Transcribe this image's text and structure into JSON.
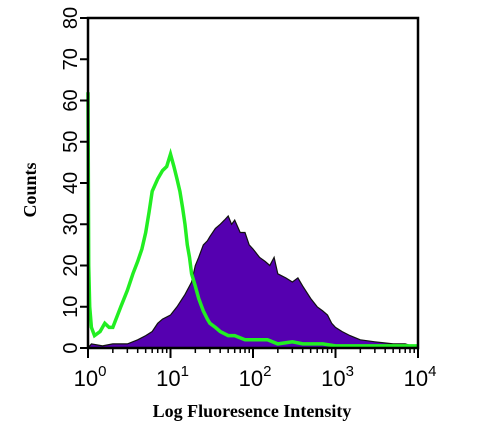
{
  "chart_data": {
    "type": "area",
    "xlabel": "Log Fluoresence Intensity",
    "ylabel": "Counts",
    "x_scale": "log",
    "xlim": [
      1,
      10000
    ],
    "ylim": [
      0,
      80
    ],
    "y_ticks": [
      "0",
      "10",
      "20",
      "30",
      "40",
      "50",
      "60",
      "70",
      "80"
    ],
    "x_ticks": [
      {
        "base": "10",
        "exp": "0",
        "value": 1
      },
      {
        "base": "10",
        "exp": "1",
        "value": 10
      },
      {
        "base": "10",
        "exp": "2",
        "value": 100
      },
      {
        "base": "10",
        "exp": "3",
        "value": 1000
      },
      {
        "base": "10",
        "exp": "4",
        "value": 10000
      }
    ],
    "grid": false,
    "legend": "none",
    "series": [
      {
        "style": "filled",
        "color": "#5500b0",
        "points": [
          [
            1.0,
            0
          ],
          [
            1.1,
            1
          ],
          [
            1.5,
            0.5
          ],
          [
            2,
            1
          ],
          [
            3,
            1
          ],
          [
            4,
            2
          ],
          [
            5,
            3
          ],
          [
            6,
            4
          ],
          [
            7,
            6
          ],
          [
            8,
            7
          ],
          [
            10,
            8
          ],
          [
            12,
            10
          ],
          [
            15,
            13
          ],
          [
            18,
            16
          ],
          [
            20,
            20
          ],
          [
            22,
            22
          ],
          [
            25,
            25
          ],
          [
            28,
            26
          ],
          [
            30,
            27
          ],
          [
            35,
            29
          ],
          [
            40,
            30
          ],
          [
            45,
            31
          ],
          [
            50,
            32
          ],
          [
            55,
            30
          ],
          [
            60,
            31
          ],
          [
            70,
            28
          ],
          [
            80,
            28
          ],
          [
            90,
            25
          ],
          [
            100,
            24
          ],
          [
            120,
            22
          ],
          [
            140,
            21
          ],
          [
            160,
            20
          ],
          [
            180,
            22
          ],
          [
            200,
            18
          ],
          [
            250,
            17
          ],
          [
            300,
            16
          ],
          [
            350,
            17
          ],
          [
            400,
            15
          ],
          [
            500,
            12
          ],
          [
            600,
            10
          ],
          [
            700,
            9
          ],
          [
            800,
            8
          ],
          [
            900,
            6
          ],
          [
            1000,
            5
          ],
          [
            1200,
            4
          ],
          [
            1500,
            3
          ],
          [
            2000,
            2
          ],
          [
            3000,
            1.5
          ],
          [
            5000,
            1
          ],
          [
            7000,
            1
          ],
          [
            10000,
            0
          ]
        ]
      },
      {
        "style": "line",
        "color": "#22ee22",
        "points": [
          [
            1.0,
            62
          ],
          [
            1.02,
            20
          ],
          [
            1.05,
            10
          ],
          [
            1.1,
            5
          ],
          [
            1.2,
            3
          ],
          [
            1.4,
            4
          ],
          [
            1.6,
            6
          ],
          [
            1.8,
            5
          ],
          [
            2,
            5
          ],
          [
            2.5,
            10
          ],
          [
            3,
            14
          ],
          [
            3.5,
            18
          ],
          [
            4,
            21
          ],
          [
            4.5,
            24
          ],
          [
            5,
            28
          ],
          [
            5.5,
            33
          ],
          [
            6,
            38
          ],
          [
            7,
            41
          ],
          [
            8,
            43
          ],
          [
            9,
            44
          ],
          [
            10,
            47
          ],
          [
            11,
            44
          ],
          [
            12,
            41
          ],
          [
            13,
            38
          ],
          [
            14,
            34
          ],
          [
            15,
            30
          ],
          [
            16,
            25
          ],
          [
            17,
            22
          ],
          [
            18,
            18
          ],
          [
            20,
            15
          ],
          [
            22,
            12
          ],
          [
            25,
            9
          ],
          [
            28,
            7
          ],
          [
            30,
            6
          ],
          [
            35,
            5
          ],
          [
            40,
            4
          ],
          [
            50,
            3
          ],
          [
            60,
            3
          ],
          [
            80,
            2
          ],
          [
            100,
            2
          ],
          [
            150,
            2
          ],
          [
            200,
            1
          ],
          [
            300,
            1.5
          ],
          [
            400,
            1
          ],
          [
            500,
            1
          ],
          [
            700,
            1
          ],
          [
            1000,
            0.5
          ],
          [
            10000,
            0.5
          ]
        ]
      }
    ]
  }
}
